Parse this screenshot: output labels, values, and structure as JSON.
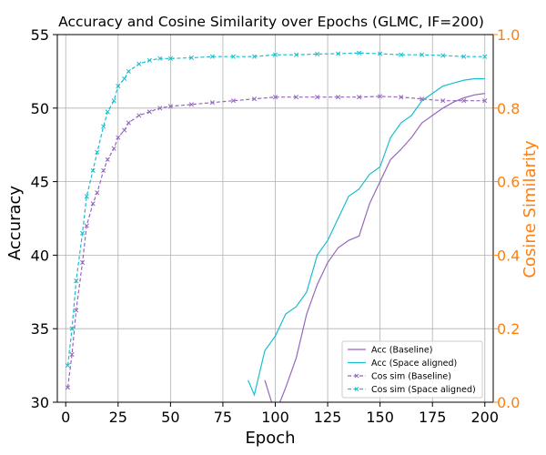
{
  "chart_data": {
    "type": "line",
    "title": "Accuracy and Cosine Similarity over Epochs (GLMC, IF=200)",
    "xlabel": "Epoch",
    "ylabel": "Accuracy",
    "ylabel_right": "Cosine Similarity",
    "xlim": [
      -4,
      204
    ],
    "ylim": [
      30,
      55
    ],
    "ylim_right": [
      0.0,
      1.0
    ],
    "x_ticks": [
      0,
      25,
      50,
      75,
      100,
      125,
      150,
      175,
      200
    ],
    "y_ticks": [
      30,
      35,
      40,
      45,
      50,
      55
    ],
    "y_ticks_right": [
      "0.0",
      "0.2",
      "0.4",
      "0.6",
      "0.8",
      "1.0"
    ],
    "grid": true,
    "legend_position": "lower-right",
    "colors": {
      "baseline": "#9467bd",
      "space_aligned": "#17becf",
      "right_axis": "#ff7f0e"
    },
    "series": [
      {
        "name": "Acc (Baseline)",
        "axis": "left",
        "style": "solid",
        "color": "#9467bd",
        "x": [
          95,
          100,
          105,
          110,
          115,
          120,
          125,
          130,
          135,
          140,
          145,
          150,
          155,
          160,
          165,
          170,
          175,
          180,
          185,
          190,
          195,
          200
        ],
        "y": [
          31.5,
          29.2,
          31.0,
          33.0,
          36.0,
          38.0,
          39.5,
          40.5,
          41.0,
          41.3,
          43.5,
          45.0,
          46.5,
          47.2,
          48.0,
          49.0,
          49.5,
          50.0,
          50.4,
          50.7,
          50.9,
          51.0
        ]
      },
      {
        "name": "Acc (Space aligned)",
        "axis": "left",
        "style": "solid",
        "color": "#17becf",
        "x": [
          87,
          90,
          95,
          100,
          105,
          110,
          115,
          120,
          125,
          130,
          135,
          140,
          145,
          150,
          155,
          160,
          165,
          170,
          175,
          180,
          185,
          190,
          195,
          200
        ],
        "y": [
          31.5,
          30.5,
          33.5,
          34.5,
          36.0,
          36.5,
          37.5,
          40.0,
          41.0,
          42.5,
          44.0,
          44.5,
          45.5,
          46.0,
          48.0,
          49.0,
          49.5,
          50.5,
          51.0,
          51.5,
          51.7,
          51.9,
          52.0,
          52.0
        ]
      },
      {
        "name": "Cos sim (Baseline)",
        "axis": "right",
        "style": "dashed",
        "color": "#9467bd",
        "x": [
          1,
          3,
          5,
          8,
          10,
          13,
          15,
          18,
          20,
          23,
          25,
          28,
          30,
          35,
          40,
          45,
          50,
          60,
          70,
          80,
          90,
          100,
          110,
          120,
          130,
          140,
          150,
          160,
          170,
          180,
          190,
          200
        ],
        "y": [
          0.04,
          0.13,
          0.25,
          0.38,
          0.48,
          0.54,
          0.57,
          0.63,
          0.66,
          0.69,
          0.72,
          0.74,
          0.76,
          0.78,
          0.79,
          0.8,
          0.805,
          0.81,
          0.815,
          0.82,
          0.825,
          0.83,
          0.83,
          0.83,
          0.83,
          0.83,
          0.832,
          0.83,
          0.825,
          0.82,
          0.82,
          0.82
        ]
      },
      {
        "name": "Cos sim (Space aligned)",
        "axis": "right",
        "style": "dashed",
        "color": "#17becf",
        "x": [
          1,
          3,
          5,
          8,
          10,
          13,
          15,
          18,
          20,
          23,
          25,
          28,
          30,
          35,
          40,
          45,
          50,
          60,
          70,
          80,
          90,
          100,
          110,
          120,
          130,
          140,
          150,
          160,
          170,
          180,
          190,
          200
        ],
        "y": [
          0.1,
          0.2,
          0.33,
          0.46,
          0.56,
          0.63,
          0.68,
          0.75,
          0.79,
          0.82,
          0.86,
          0.88,
          0.9,
          0.92,
          0.93,
          0.935,
          0.935,
          0.937,
          0.94,
          0.94,
          0.94,
          0.945,
          0.945,
          0.947,
          0.948,
          0.95,
          0.948,
          0.945,
          0.945,
          0.943,
          0.94,
          0.94
        ]
      }
    ]
  }
}
